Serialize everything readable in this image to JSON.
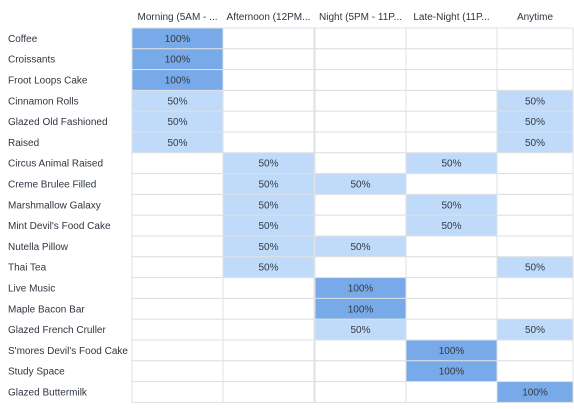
{
  "colors": {
    "high": "#78a9e8",
    "mid": "#c0dafa",
    "empty": "#ffffff",
    "grid": "#dde0e4",
    "text": "#2f3640"
  },
  "chart_data": {
    "type": "heatmap",
    "columns": [
      "Morning (5AM - ...",
      "Afternoon (12PM...",
      "Night (5PM - 11P...",
      "Late-Night (11P...",
      "Anytime"
    ],
    "rows": [
      "Coffee",
      "Croissants",
      "Froot Loops Cake",
      "Cinnamon Rolls",
      "Glazed Old Fashioned",
      "Raised",
      "Circus Animal Raised",
      "Creme Brulee Filled",
      "Marshmallow Galaxy",
      "Mint Devil's Food Cake",
      "Nutella Pillow",
      "Thai Tea",
      "Live Music",
      "Maple Bacon Bar",
      "Glazed French Cruller",
      "S'mores Devil's Food Cake",
      "Study Space",
      "Glazed Buttermilk"
    ],
    "values": [
      [
        100,
        null,
        null,
        null,
        null
      ],
      [
        100,
        null,
        null,
        null,
        null
      ],
      [
        100,
        null,
        null,
        null,
        null
      ],
      [
        50,
        null,
        null,
        null,
        50
      ],
      [
        50,
        null,
        null,
        null,
        50
      ],
      [
        50,
        null,
        null,
        null,
        50
      ],
      [
        null,
        50,
        null,
        50,
        null
      ],
      [
        null,
        50,
        50,
        null,
        null
      ],
      [
        null,
        50,
        null,
        50,
        null
      ],
      [
        null,
        50,
        null,
        50,
        null
      ],
      [
        null,
        50,
        50,
        null,
        null
      ],
      [
        null,
        50,
        null,
        null,
        50
      ],
      [
        null,
        null,
        100,
        null,
        null
      ],
      [
        null,
        null,
        100,
        null,
        null
      ],
      [
        null,
        null,
        50,
        null,
        50
      ],
      [
        null,
        null,
        null,
        100,
        null
      ],
      [
        null,
        null,
        null,
        100,
        null
      ],
      [
        null,
        null,
        null,
        null,
        100
      ]
    ],
    "value_labels": [
      [
        "100%",
        "",
        "",
        "",
        ""
      ],
      [
        "100%",
        "",
        "",
        "",
        ""
      ],
      [
        "100%",
        "",
        "",
        "",
        ""
      ],
      [
        "50%",
        "",
        "",
        "",
        "50%"
      ],
      [
        "50%",
        "",
        "",
        "",
        "50%"
      ],
      [
        "50%",
        "",
        "",
        "",
        "50%"
      ],
      [
        "",
        "50%",
        "",
        "50%",
        ""
      ],
      [
        "",
        "50%",
        "50%",
        "",
        ""
      ],
      [
        "",
        "50%",
        "",
        "50%",
        ""
      ],
      [
        "",
        "50%",
        "",
        "50%",
        ""
      ],
      [
        "",
        "50%",
        "50%",
        "",
        ""
      ],
      [
        "",
        "50%",
        "",
        "",
        "50%"
      ],
      [
        "",
        "",
        "100%",
        "",
        ""
      ],
      [
        "",
        "",
        "100%",
        "",
        ""
      ],
      [
        "",
        "",
        "50%",
        "",
        "50%"
      ],
      [
        "",
        "",
        "",
        "100%",
        ""
      ],
      [
        "",
        "",
        "",
        "100%",
        ""
      ],
      [
        "",
        "",
        "",
        "",
        "100%"
      ]
    ],
    "unit": "%",
    "grid": true
  }
}
